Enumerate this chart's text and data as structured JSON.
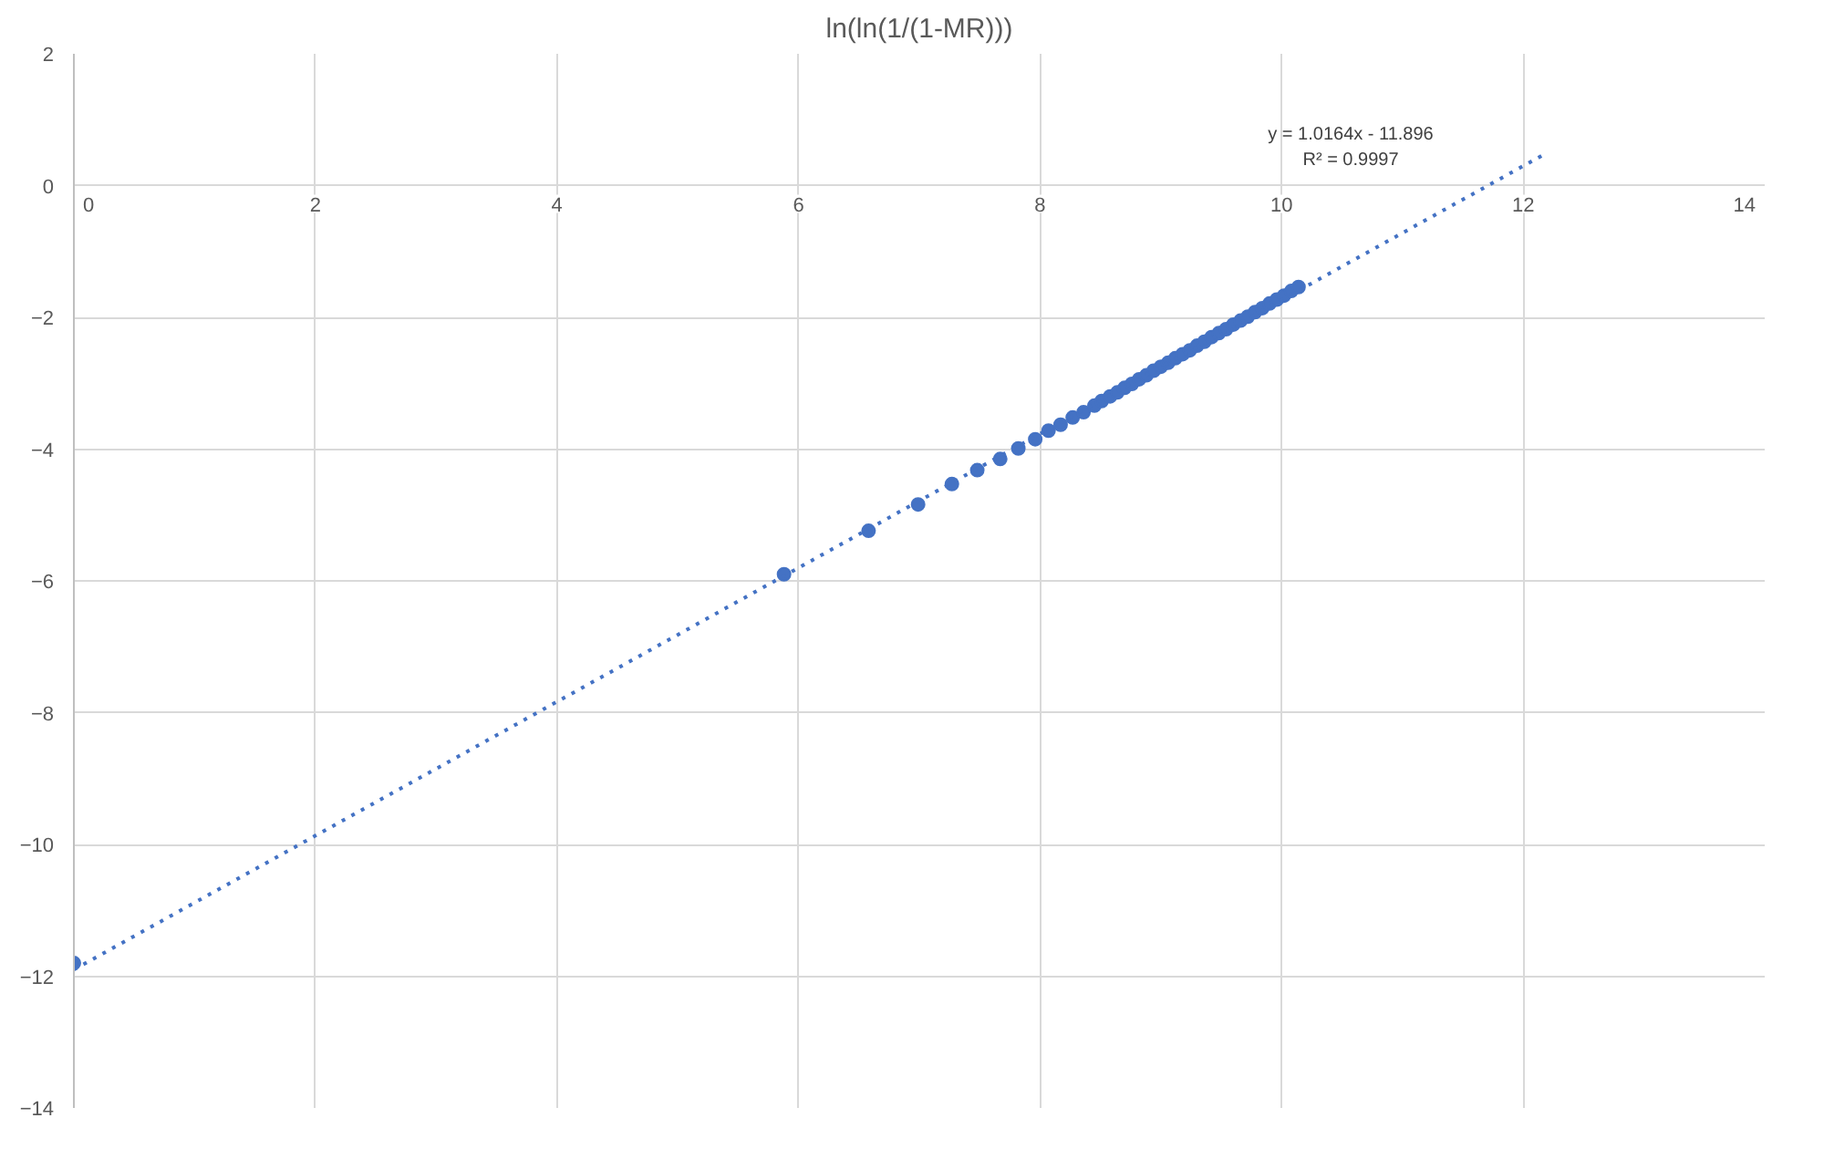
{
  "chart_data": {
    "type": "scatter",
    "title": "ln(ln(1/(1-MR)))",
    "marker": "circle",
    "grid": true,
    "xlim": [
      0,
      14
    ],
    "xticks": [
      0,
      2,
      4,
      6,
      8,
      10,
      12,
      14
    ],
    "ylim": [
      -14,
      2
    ],
    "yticks": [
      -14,
      -12,
      -10,
      -8,
      -6,
      -4,
      -2,
      0,
      2
    ],
    "annotations": [
      "y = 1.0164x - 11.896",
      "R² = 0.9997"
    ],
    "series": [
      {
        "color": "#4472c4",
        "x": [
          0,
          5.88,
          6.58,
          6.99,
          7.27,
          7.48,
          7.67,
          7.82,
          7.96,
          8.07,
          8.17,
          8.27,
          8.36,
          8.45,
          8.51,
          8.58,
          8.64,
          8.7,
          8.76,
          8.82,
          8.88,
          8.94,
          9.0,
          9.06,
          9.12,
          9.18,
          9.24,
          9.3,
          9.36,
          9.42,
          9.48,
          9.54,
          9.6,
          9.66,
          9.72,
          9.78,
          9.84,
          9.9,
          9.96,
          10.02,
          10.08,
          10.14
        ],
        "values": [
          -11.8,
          -5.9,
          -5.24,
          -4.84,
          -4.53,
          -4.32,
          -4.15,
          -3.99,
          -3.85,
          -3.72,
          -3.63,
          -3.52,
          -3.44,
          -3.34,
          -3.27,
          -3.2,
          -3.14,
          -3.07,
          -3.01,
          -2.94,
          -2.88,
          -2.81,
          -2.75,
          -2.69,
          -2.62,
          -2.56,
          -2.5,
          -2.43,
          -2.37,
          -2.3,
          -2.24,
          -2.18,
          -2.11,
          -2.05,
          -1.99,
          -1.92,
          -1.86,
          -1.79,
          -1.73,
          -1.67,
          -1.6,
          -1.54
        ]
      },
      {
        "type": "line",
        "color": "#4472c4",
        "line_style": "dotted",
        "marker": "none",
        "x": [
          0,
          12.2
        ],
        "values": [
          -11.9,
          0.5
        ]
      }
    ]
  }
}
